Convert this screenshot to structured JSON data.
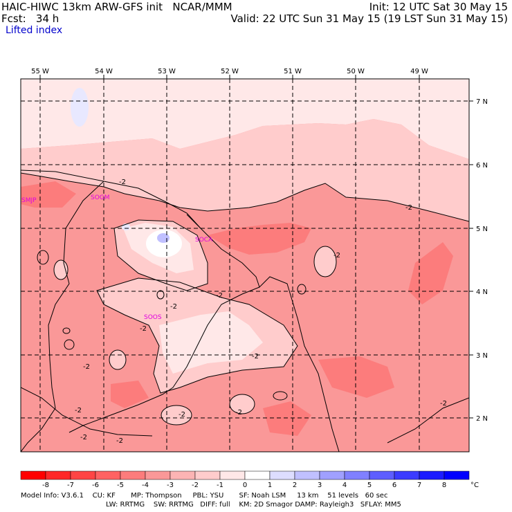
{
  "header": {
    "title": "HAIC-HIWC 13km ARW-GFS init   NCAR/MMM",
    "fcst": "Fcst:   34 h",
    "field": "Lifted index",
    "init": "Init: 12 UTC Sat 30 May 15",
    "valid": "Valid: 22 UTC Sun 31 May 15 (19 LST Sun 31 May 15)"
  },
  "axes": {
    "lon_labels": [
      "55 W",
      "54 W",
      "53 W",
      "52 W",
      "51 W",
      "50 W",
      "49 W"
    ],
    "lat_labels": [
      "7 N",
      "6 N",
      "5 N",
      "4 N",
      "3 N",
      "2 N"
    ]
  },
  "stations": [
    "SMJP",
    "SOGM",
    "SOCA",
    "SOOS"
  ],
  "contour_labels": [
    "-2",
    "-2",
    "-2",
    "-2",
    "-2",
    "-2",
    "-2",
    "-2",
    "-2",
    "-2",
    "-2",
    "-2",
    "-2",
    "-2"
  ],
  "colorbar": {
    "levels": [
      "-8",
      "-7",
      "-6",
      "-5",
      "-4",
      "-3",
      "-2",
      "-1",
      "0",
      "1",
      "2",
      "3",
      "4",
      "5",
      "6",
      "7",
      "8"
    ],
    "unit": "°C",
    "colors": [
      "#ff0000",
      "#ff2828",
      "#ff4545",
      "#ff6262",
      "#fc7c7c",
      "#fa9898",
      "#fcb4b4",
      "#ffcccc",
      "#ffe8e8",
      "#ffffff",
      "#ddddff",
      "#c0c0ff",
      "#a0a0ff",
      "#8080ff",
      "#5e5eff",
      "#3c3cff",
      "#1c1cff",
      "#0000ff"
    ]
  },
  "footer": {
    "line1": "Model Info: V3.6.1    CU: KF       MP: Thompson     PBL: YSU       SF: Noah LSM     13 km    51 levels   60 sec",
    "line2": "LW: RRTMG    SW: RRTMG   DIFF: full    KM: 2D Smagor DAMP: Rayleigh3   SFLAY: MM5"
  }
}
